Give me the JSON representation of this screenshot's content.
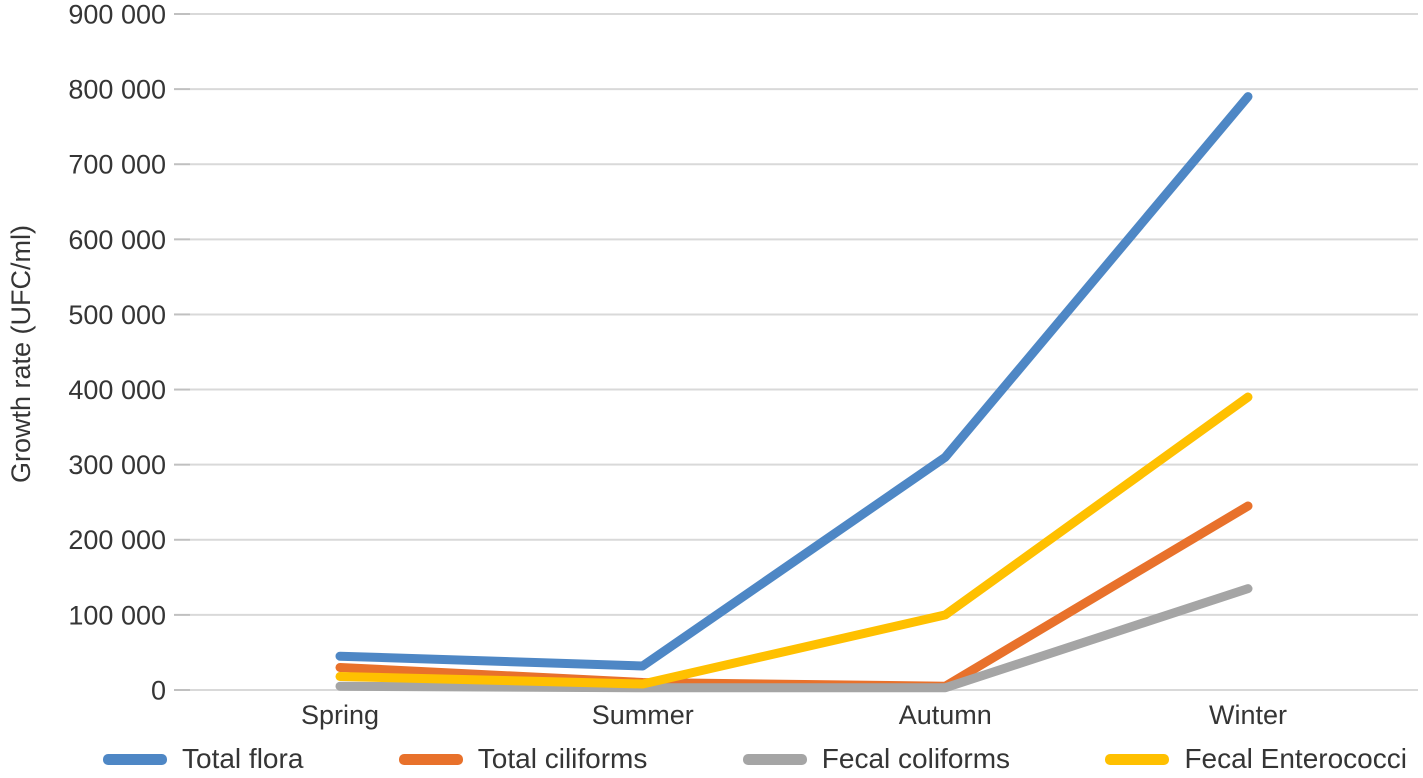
{
  "figure": {
    "background": "#ffffff",
    "text_color": "#353535",
    "gridline_color": "#d9d9d9",
    "tick_color": "#c0c0c0"
  },
  "chart_data": {
    "type": "line",
    "title": "",
    "xlabel": "",
    "ylabel": "Growth rate (UFC/ml)",
    "ylim": [
      0,
      900000
    ],
    "ytick_step": 100000,
    "ytick_labels": [
      "0",
      "100 000",
      "200 000",
      "300 000",
      "400 000",
      "500 000",
      "600 000",
      "700 000",
      "800 000",
      "900 000"
    ],
    "grid": true,
    "legend_position": "bottom",
    "categories": [
      "Spring",
      "Summer",
      "Autumn",
      "Winter"
    ],
    "series": [
      {
        "name": "Total flora",
        "color": "#4e87c5",
        "values": [
          45000,
          32000,
          310000,
          790000
        ]
      },
      {
        "name": "Total ciliforms",
        "color": "#e8712b",
        "values": [
          30000,
          10000,
          5000,
          245000
        ]
      },
      {
        "name": "Fecal coliforms",
        "color": "#a5a5a5",
        "values": [
          5000,
          3000,
          3000,
          135000
        ]
      },
      {
        "name": "Fecal Enterococci",
        "color": "#ffc000",
        "values": [
          18000,
          8000,
          100000,
          390000
        ]
      }
    ]
  }
}
